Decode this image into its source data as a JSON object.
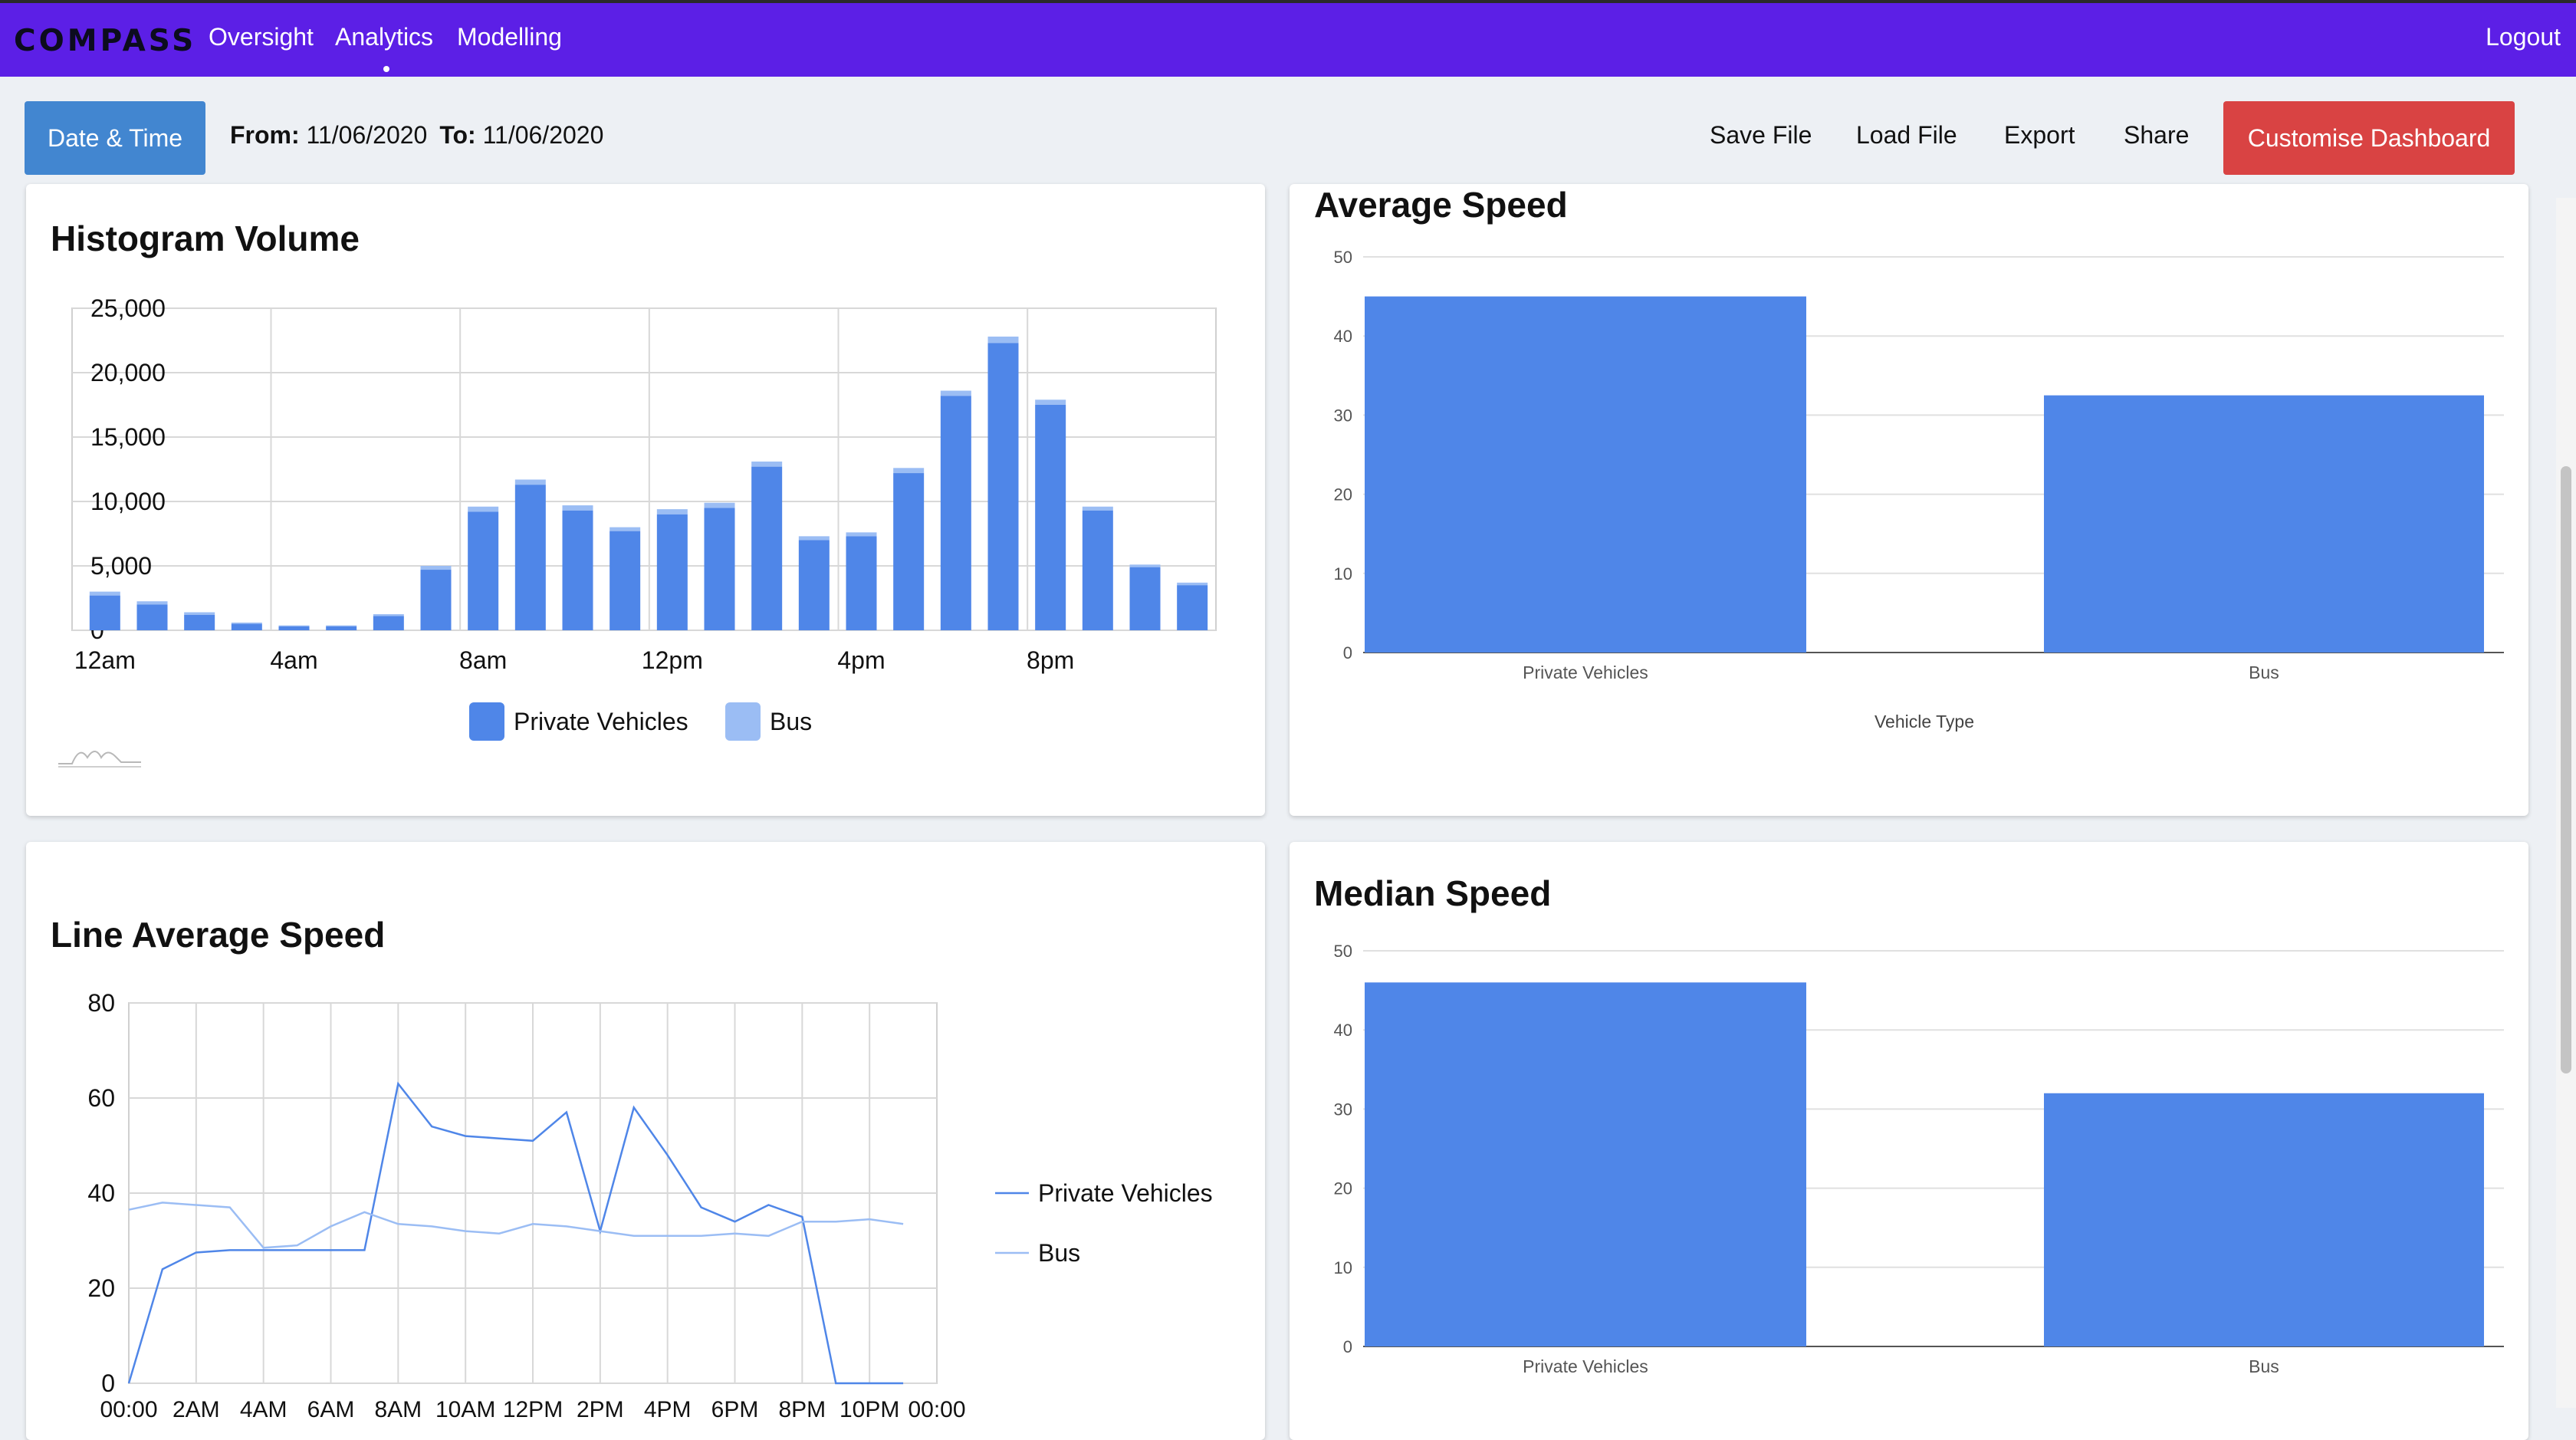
{
  "nav": {
    "logo": "COMPASS",
    "items": [
      "Oversight",
      "Analytics",
      "Modelling"
    ],
    "logout": "Logout"
  },
  "toolbar": {
    "date_button": "Date & Time",
    "from_label": "From:",
    "from_value": "11/06/2020",
    "to_label": "To:",
    "to_value": "11/06/2020",
    "save": "Save File",
    "load": "Load File",
    "export": "Export",
    "share": "Share",
    "customise": "Customise Dashboard"
  },
  "colors": {
    "nav": "#5c1fe6",
    "primary_button": "#4286d0",
    "danger_button": "#d94343",
    "series_private": "#4f86e8",
    "series_bus": "#9bbdf4"
  },
  "chart_data": [
    {
      "id": "histogram",
      "type": "bar",
      "title": "Histogram Volume",
      "stacked": true,
      "x_tick_labels": [
        "12am",
        "4am",
        "8am",
        "12pm",
        "4pm",
        "8pm"
      ],
      "y_tick_labels": [
        "0",
        "5,000",
        "10,000",
        "15,000",
        "20,000",
        "25,000"
      ],
      "ylim": [
        0,
        25000
      ],
      "categories": [
        0,
        1,
        2,
        3,
        4,
        5,
        6,
        7,
        8,
        9,
        10,
        11,
        12,
        13,
        14,
        15,
        16,
        17,
        18,
        19,
        20,
        21,
        22,
        23
      ],
      "series": [
        {
          "name": "Private Vehicles",
          "values": [
            2700,
            2000,
            1200,
            500,
            300,
            300,
            1100,
            4700,
            9200,
            11300,
            9300,
            7700,
            9000,
            9500,
            12700,
            7000,
            7300,
            12200,
            18200,
            22300,
            17500,
            9300,
            4900,
            3500
          ]
        },
        {
          "name": "Bus",
          "values": [
            300,
            250,
            200,
            100,
            80,
            80,
            150,
            300,
            400,
            400,
            400,
            300,
            400,
            400,
            400,
            300,
            300,
            400,
            400,
            500,
            400,
            300,
            200,
            200
          ]
        }
      ],
      "legend": "bottom"
    },
    {
      "id": "average-speed",
      "type": "bar",
      "title": "Average Speed",
      "categories": [
        "Private Vehicles",
        "Bus"
      ],
      "values": [
        45,
        32.5
      ],
      "y_tick_labels": [
        "0",
        "10",
        "20",
        "30",
        "40",
        "50"
      ],
      "ylim": [
        0,
        50
      ],
      "xlabel": "Vehicle Type"
    },
    {
      "id": "line-average-speed",
      "type": "line",
      "title": "Line Average Speed",
      "x": [
        0,
        1,
        2,
        3,
        4,
        5,
        6,
        7,
        8,
        9,
        10,
        11,
        12,
        13,
        14,
        15,
        16,
        17,
        18,
        19,
        20,
        21,
        22,
        23
      ],
      "x_tick_labels": [
        "00:00",
        "2AM",
        "4AM",
        "6AM",
        "8AM",
        "10AM",
        "12PM",
        "2PM",
        "4PM",
        "6PM",
        "8PM",
        "10PM",
        "00:00"
      ],
      "y_tick_labels": [
        "0",
        "20",
        "40",
        "60",
        "80"
      ],
      "ylim": [
        0,
        80
      ],
      "series": [
        {
          "name": "Private Vehicles",
          "values": [
            0,
            24,
            27.5,
            28,
            28,
            28,
            28,
            28,
            63,
            54,
            52,
            51.5,
            51,
            57,
            32,
            58,
            48,
            37,
            34,
            37.5,
            35,
            0,
            0,
            0
          ]
        },
        {
          "name": "Bus",
          "values": [
            36.5,
            38,
            37.5,
            37,
            28.5,
            29,
            33,
            36,
            33.5,
            33,
            32,
            31.5,
            33.5,
            33,
            32,
            31,
            31,
            31,
            31.5,
            31,
            34,
            34,
            34.5,
            33.5
          ]
        }
      ],
      "legend": "right"
    },
    {
      "id": "median-speed",
      "type": "bar",
      "title": "Median Speed",
      "categories": [
        "Private Vehicles",
        "Bus"
      ],
      "values": [
        46,
        32
      ],
      "y_tick_labels": [
        "0",
        "10",
        "20",
        "30",
        "40",
        "50"
      ],
      "ylim": [
        0,
        50
      ]
    }
  ]
}
